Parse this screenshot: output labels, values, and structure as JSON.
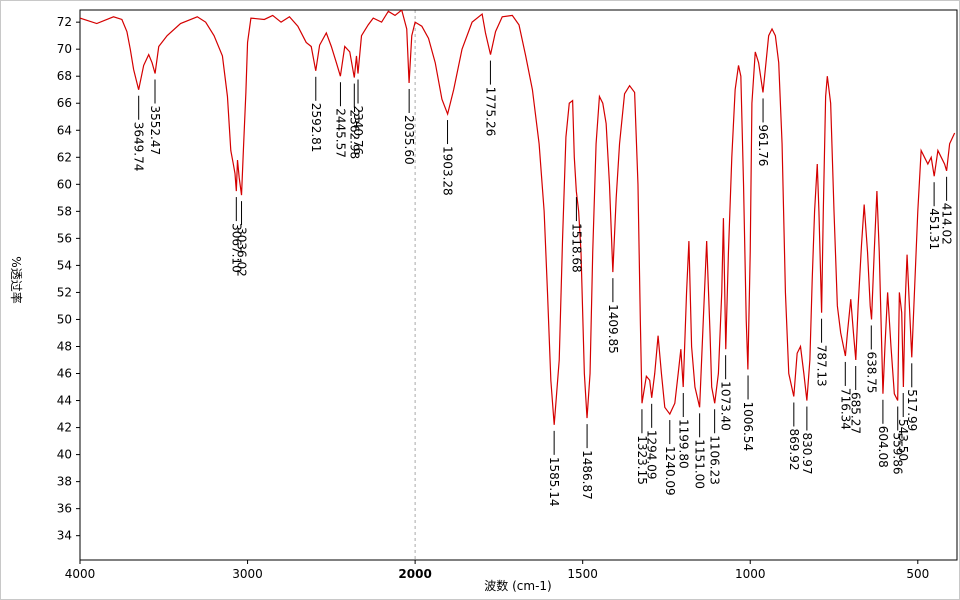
{
  "chart_data": {
    "type": "line",
    "x_label": "波数 (cm-1)",
    "y_label": "%透过率",
    "xlim": [
      4000,
      383
    ],
    "ylim": [
      32.2,
      72.9
    ],
    "x_scale_break": 2000,
    "xticks": [
      4000,
      3000,
      2000,
      1500,
      1000,
      500
    ],
    "yticks": [
      34,
      36,
      38,
      40,
      42,
      44,
      46,
      48,
      50,
      52,
      54,
      56,
      58,
      60,
      62,
      64,
      66,
      68,
      70,
      72
    ],
    "series": [
      {
        "color": "#d40000",
        "x": [
          4000,
          3900,
          3800,
          3750,
          3720,
          3700,
          3680,
          3650,
          3620,
          3590,
          3570,
          3552,
          3530,
          3480,
          3400,
          3300,
          3250,
          3200,
          3150,
          3120,
          3100,
          3085,
          3075,
          3067,
          3060,
          3050,
          3036,
          3025,
          3010,
          3000,
          2980,
          2900,
          2850,
          2800,
          2750,
          2700,
          2650,
          2620,
          2593,
          2570,
          2530,
          2500,
          2470,
          2446,
          2420,
          2390,
          2363,
          2350,
          2341,
          2320,
          2280,
          2250,
          2200,
          2160,
          2120,
          2080,
          2050,
          2036,
          2020,
          2000,
          1980,
          1960,
          1940,
          1920,
          1903,
          1885,
          1860,
          1830,
          1800,
          1790,
          1775,
          1760,
          1740,
          1710,
          1690,
          1670,
          1650,
          1630,
          1615,
          1605,
          1595,
          1585,
          1570,
          1560,
          1550,
          1540,
          1530,
          1525,
          1519,
          1512,
          1505,
          1495,
          1487,
          1478,
          1470,
          1460,
          1450,
          1440,
          1430,
          1420,
          1410,
          1400,
          1390,
          1375,
          1360,
          1345,
          1335,
          1328,
          1323,
          1310,
          1300,
          1294,
          1285,
          1275,
          1265,
          1255,
          1240,
          1225,
          1215,
          1207,
          1200,
          1190,
          1183,
          1175,
          1165,
          1151,
          1140,
          1130,
          1120,
          1115,
          1106,
          1095,
          1085,
          1080,
          1073,
          1065,
          1055,
          1045,
          1035,
          1028,
          1020,
          1012,
          1007,
          1000,
          995,
          985,
          975,
          962,
          955,
          945,
          935,
          925,
          915,
          905,
          895,
          885,
          870,
          860,
          850,
          840,
          831,
          822,
          815,
          808,
          800,
          795,
          787,
          782,
          775,
          770,
          760,
          750,
          740,
          730,
          716,
          710,
          700,
          692,
          685,
          678,
          668,
          660,
          650,
          642,
          638,
          630,
          622,
          615,
          604,
          598,
          590,
          580,
          570,
          560,
          555,
          548,
          543,
          538,
          532,
          525,
          518,
          510,
          500,
          490,
          480,
          470,
          460,
          451,
          440,
          430,
          420,
          414,
          405,
          390
        ],
        "values": [
          72.3,
          71.9,
          72.4,
          72.2,
          71.3,
          70.0,
          68.5,
          67.0,
          68.8,
          69.6,
          69.0,
          68.2,
          70.2,
          71.0,
          71.9,
          72.4,
          72.0,
          71.0,
          69.5,
          66.5,
          62.5,
          61.5,
          60.8,
          59.5,
          61.8,
          60.5,
          59.2,
          62.5,
          66.8,
          70.5,
          72.3,
          72.2,
          72.5,
          72.0,
          72.4,
          71.7,
          70.5,
          70.2,
          68.4,
          70.3,
          71.2,
          70.2,
          69.0,
          68.0,
          70.2,
          69.8,
          67.9,
          69.5,
          68.2,
          71.0,
          71.8,
          72.3,
          72.0,
          72.8,
          72.5,
          72.9,
          71.5,
          67.5,
          71.0,
          72.0,
          71.7,
          70.8,
          69.0,
          66.3,
          65.2,
          67.0,
          70.0,
          72.0,
          72.6,
          71.2,
          69.6,
          71.3,
          72.4,
          72.5,
          71.8,
          69.5,
          67.0,
          63.0,
          58.0,
          52.0,
          45.5,
          42.2,
          47.0,
          56.0,
          63.5,
          66.0,
          66.2,
          62.0,
          59.5,
          58.0,
          55.0,
          46.0,
          42.7,
          46.0,
          55.0,
          63.0,
          66.5,
          66.0,
          64.5,
          60.0,
          53.5,
          59.0,
          63.0,
          66.7,
          67.3,
          66.8,
          60.0,
          50.0,
          43.8,
          45.8,
          45.5,
          44.2,
          46.0,
          48.8,
          46.0,
          43.5,
          43.0,
          43.8,
          46.0,
          47.8,
          45.0,
          52.0,
          55.8,
          48.0,
          45.0,
          43.5,
          50.0,
          55.8,
          49.0,
          45.0,
          43.8,
          46.0,
          52.0,
          57.5,
          47.8,
          55.0,
          62.0,
          67.0,
          68.8,
          68.0,
          60.0,
          50.0,
          46.3,
          55.0,
          66.0,
          69.8,
          69.0,
          66.8,
          68.5,
          71.0,
          71.5,
          71.0,
          69.0,
          63.0,
          52.0,
          46.0,
          44.3,
          47.5,
          48.0,
          46.0,
          44.0,
          47.0,
          53.0,
          58.0,
          61.5,
          58.0,
          50.5,
          58.0,
          66.5,
          68.0,
          66.0,
          58.0,
          51.0,
          49.0,
          47.3,
          49.0,
          51.5,
          49.0,
          47.0,
          51.0,
          55.5,
          58.5,
          55.0,
          51.0,
          50.0,
          55.0,
          59.5,
          55.0,
          44.5,
          48.0,
          52.0,
          48.0,
          44.5,
          44.0,
          52.0,
          50.5,
          45.0,
          51.0,
          54.8,
          51.0,
          47.2,
          52.0,
          58.0,
          62.5,
          62.0,
          61.5,
          62.0,
          60.6,
          62.5,
          62.0,
          61.5,
          61.0,
          63.0,
          63.8
        ]
      }
    ],
    "peaks": {
      "x": [
        3649.74,
        3552.47,
        3067.1,
        3036.02,
        2592.81,
        2445.57,
        2362.98,
        2340.76,
        2035.6,
        1903.28,
        1775.26,
        1585.14,
        1518.68,
        1486.87,
        1409.85,
        1323.15,
        1294.09,
        1240.09,
        1199.8,
        1151.0,
        1106.23,
        1073.4,
        1006.54,
        961.76,
        869.92,
        830.97,
        787.13,
        716.34,
        685.27,
        638.75,
        604.08,
        559.86,
        543.5,
        517.99,
        451.31,
        414.02
      ],
      "y": [
        67.0,
        68.2,
        59.5,
        59.2,
        68.4,
        68.0,
        67.9,
        68.2,
        67.5,
        65.2,
        69.6,
        42.2,
        59.5,
        42.7,
        53.5,
        43.8,
        44.2,
        43.0,
        45.0,
        43.5,
        43.8,
        47.8,
        46.3,
        66.8,
        44.3,
        44.0,
        50.5,
        47.3,
        47.0,
        50.0,
        44.5,
        44.0,
        45.0,
        47.2,
        60.6,
        61.0
      ],
      "labels": [
        "3649.74",
        "3552.47",
        "3067.10",
        "3036.02",
        "2592.81",
        "2445.57",
        "2362.98",
        "2340.76",
        "2035.60",
        "1903.28",
        "1775.26",
        "1585.14",
        "1518.68",
        "1486.87",
        "1409.85",
        "1323.15",
        "1294.09",
        "1240.09",
        "1199.80",
        "1151.00",
        "1106.23",
        "1073.40",
        "1006.54",
        "961.76",
        "869.92",
        "830.97",
        "787.13",
        "716.34",
        "685.27",
        "638.75",
        "604.08",
        "559.86",
        "543.50",
        "517.99",
        "451.31",
        "414.02"
      ]
    }
  }
}
